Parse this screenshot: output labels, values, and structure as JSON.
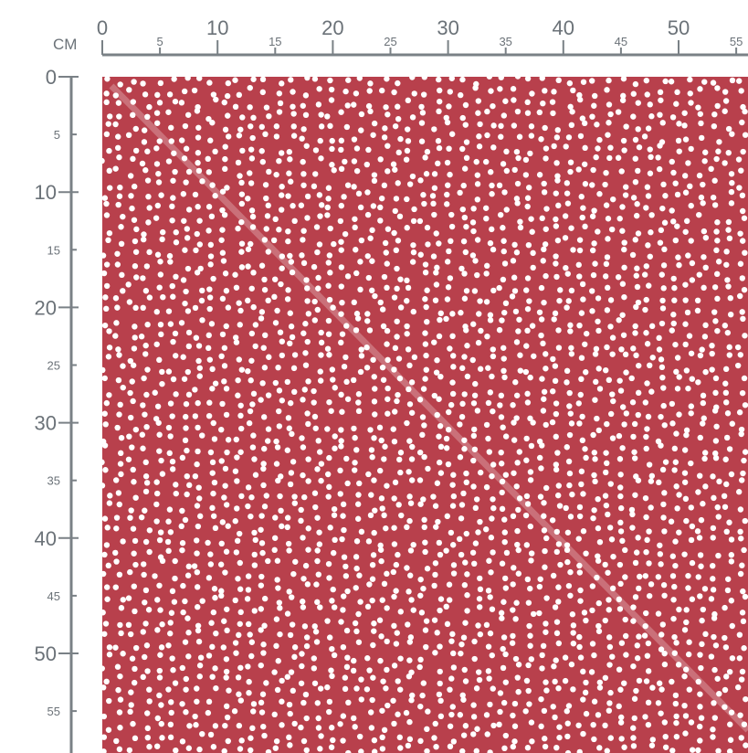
{
  "ruler": {
    "unit": "CM",
    "top_major": [
      "0",
      "10",
      "20",
      "30",
      "40",
      "50"
    ],
    "top_minor": [
      "5",
      "15",
      "25",
      "35",
      "45",
      "55"
    ],
    "left_major": [
      "0",
      "10",
      "20",
      "30",
      "40",
      "50"
    ],
    "left_minor": [
      "5",
      "15",
      "25",
      "35",
      "45",
      "55"
    ]
  },
  "swatch": {
    "pattern": "white polka dots",
    "background_color": "#b8404c",
    "dot_color": "#ffffff"
  }
}
